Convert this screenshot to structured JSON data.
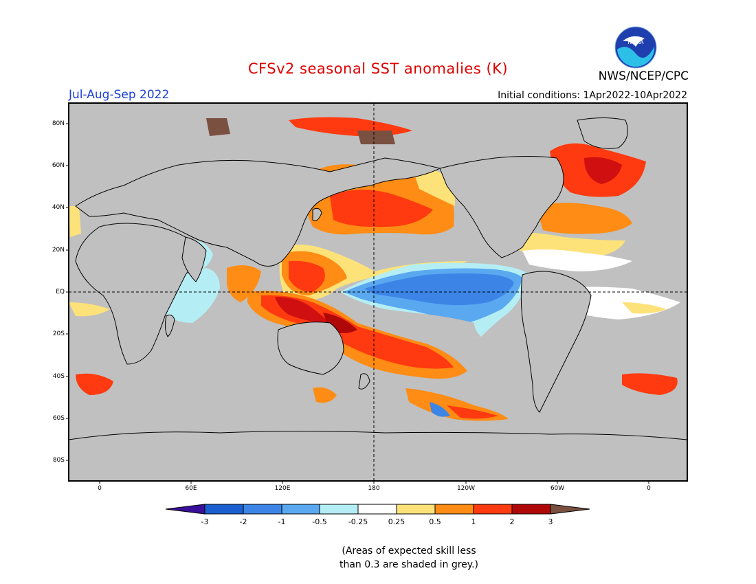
{
  "header": {
    "title": "CFSv2 seasonal SST anomalies (K)",
    "season": "Jul-Aug-Sep 2022",
    "agency": "NWS/NCEP/CPC",
    "initial_conditions": "Initial conditions: 1Apr2022-10Apr2022",
    "logo_text": "NOAA"
  },
  "map": {
    "projection": "equirectangular",
    "lon_range": [
      -20,
      380
    ],
    "lat_range": [
      -90,
      90
    ],
    "lat_ticks": [
      "80N",
      "60N",
      "40N",
      "20N",
      "EQ",
      "20S",
      "40S",
      "60S",
      "80S"
    ],
    "lon_ticks": [
      "0",
      "60E",
      "120E",
      "180",
      "120W",
      "60W",
      "0"
    ],
    "land_color": "#c0c0c0",
    "dashed_lines": [
      "EQ",
      "180"
    ]
  },
  "colorbar": {
    "labels": [
      "-3",
      "-2",
      "-1",
      "-0.5",
      "-0.25",
      "0.25",
      "0.5",
      "1",
      "2",
      "3"
    ],
    "colors": [
      "#3a0f9a",
      "#1a5fd0",
      "#3c85e6",
      "#5aa8f0",
      "#b4eef4",
      "#ffffff",
      "#fde27a",
      "#ff8c14",
      "#ff3a10",
      "#d01010",
      "#b00808",
      "#7a5040"
    ]
  },
  "note": {
    "line1": "(Areas of expected skill less",
    "line2": "than 0.3 are shaded in grey.)"
  }
}
